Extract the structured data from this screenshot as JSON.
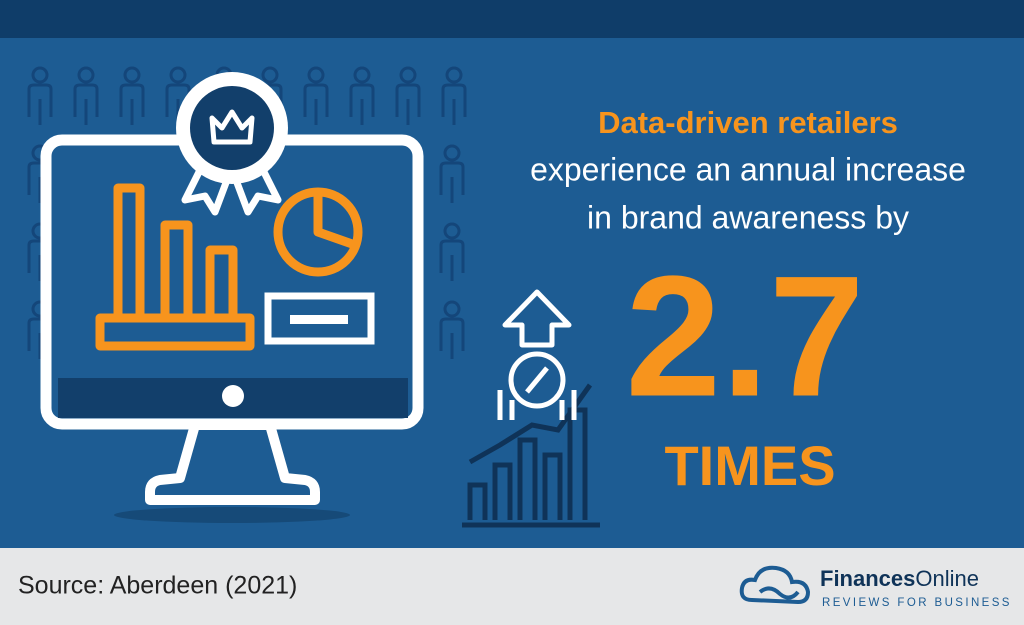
{
  "headline": {
    "highlight": "Data-driven retailers",
    "line1": "experience an annual increase",
    "line2": "in brand awareness by"
  },
  "stat": {
    "figure": "2.7",
    "unit": "TIMES"
  },
  "footer": {
    "source": "Source: Aberdeen (2021)",
    "brand_bold": "Finances",
    "brand_light": "Online",
    "tagline": "REVIEWS FOR BUSINESS"
  }
}
